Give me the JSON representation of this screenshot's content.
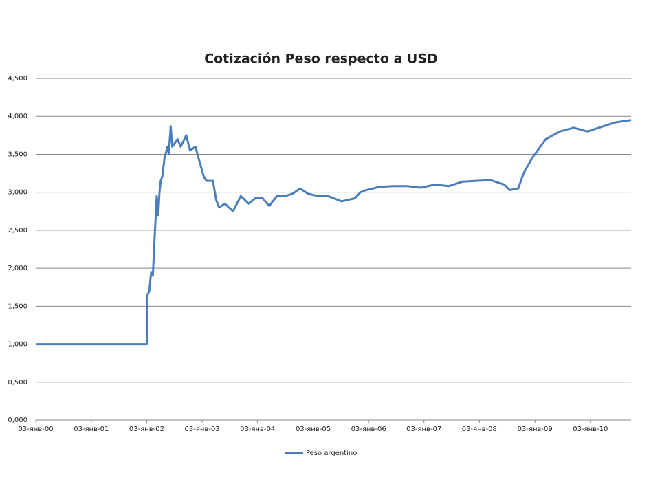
{
  "chart_data": {
    "type": "line",
    "title": "Cotización Peso respecto a USD",
    "x": [
      "2000-01-03",
      "2002-01-03",
      "2002-01-08",
      "2002-01-20",
      "2002-02-01",
      "2002-02-12",
      "2002-02-24",
      "2002-03-10",
      "2002-03-20",
      "2002-03-28",
      "2002-04-05",
      "2002-04-15",
      "2002-04-30",
      "2002-05-20",
      "2002-05-28",
      "2002-06-10",
      "2002-06-20",
      "2002-07-25",
      "2002-08-15",
      "2002-09-20",
      "2002-10-15",
      "2002-11-20",
      "2002-12-10",
      "2003-01-15",
      "2003-02-01",
      "2003-03-15",
      "2003-04-05",
      "2003-04-25",
      "2003-06-01",
      "2003-07-25",
      "2003-09-15",
      "2003-11-05",
      "2003-12-25",
      "2004-02-05",
      "2004-03-20",
      "2004-05-10",
      "2004-06-30",
      "2004-08-20",
      "2004-10-10",
      "2004-11-30",
      "2005-02-05",
      "2005-04-10",
      "2005-07-10",
      "2005-10-05",
      "2005-11-10",
      "2005-12-20",
      "2006-03-15",
      "2006-06-15",
      "2006-09-15",
      "2006-12-15",
      "2007-03-15",
      "2007-06-15",
      "2007-09-15",
      "2007-12-15",
      "2008-03-15",
      "2008-06-15",
      "2008-07-20",
      "2008-09-15",
      "2008-10-20",
      "2008-12-15",
      "2009-03-15",
      "2009-06-15",
      "2009-09-15",
      "2009-12-15",
      "2010-03-15",
      "2010-06-15",
      "2010-09-28"
    ],
    "series": [
      {
        "name": "Peso argentino",
        "color": "#4a7ebb",
        "values": [
          1.0,
          1.0,
          1.65,
          1.7,
          1.95,
          1.9,
          2.4,
          2.95,
          2.7,
          3.0,
          3.15,
          3.2,
          3.45,
          3.6,
          3.5,
          3.87,
          3.6,
          3.7,
          3.6,
          3.75,
          3.55,
          3.6,
          3.45,
          3.2,
          3.15,
          3.15,
          2.9,
          2.8,
          2.85,
          2.75,
          2.95,
          2.85,
          2.93,
          2.92,
          2.82,
          2.95,
          2.95,
          2.98,
          3.05,
          2.98,
          2.95,
          2.95,
          2.88,
          2.92,
          3.0,
          3.03,
          3.07,
          3.08,
          3.08,
          3.06,
          3.1,
          3.08,
          3.14,
          3.15,
          3.16,
          3.1,
          3.03,
          3.05,
          3.25,
          3.45,
          3.7,
          3.8,
          3.85,
          3.8,
          3.86,
          3.92,
          3.95
        ]
      }
    ],
    "xlim": [
      "2000-01-03",
      "2010-09-28"
    ],
    "xticks": [
      {
        "value": "2000-01-03",
        "label": "03-янв-00"
      },
      {
        "value": "2001-01-03",
        "label": "03-янв-01"
      },
      {
        "value": "2002-01-03",
        "label": "03-янв-02"
      },
      {
        "value": "2003-01-03",
        "label": "03-янв-03"
      },
      {
        "value": "2004-01-03",
        "label": "03-янв-04"
      },
      {
        "value": "2005-01-03",
        "label": "03-янв-05"
      },
      {
        "value": "2006-01-03",
        "label": "03-янв-06"
      },
      {
        "value": "2007-01-03",
        "label": "03-янв-07"
      },
      {
        "value": "2008-01-03",
        "label": "03-янв-08"
      },
      {
        "value": "2009-01-03",
        "label": "03-янв-09"
      },
      {
        "value": "2010-01-03",
        "label": "03-янв-10"
      }
    ],
    "ylim": [
      0,
      4.5
    ],
    "yticks": [
      {
        "value": 0,
        "label": "0,000"
      },
      {
        "value": 0.5,
        "label": "0,500"
      },
      {
        "value": 1,
        "label": "1,000"
      },
      {
        "value": 1.5,
        "label": "1,500"
      },
      {
        "value": 2,
        "label": "2,000"
      },
      {
        "value": 2.5,
        "label": "2,500"
      },
      {
        "value": 3,
        "label": "3,000"
      },
      {
        "value": 3.5,
        "label": "3,500"
      },
      {
        "value": 4,
        "label": "4,000"
      },
      {
        "value": 4.5,
        "label": "4,500"
      }
    ],
    "grid": true,
    "legend": "bottom"
  }
}
